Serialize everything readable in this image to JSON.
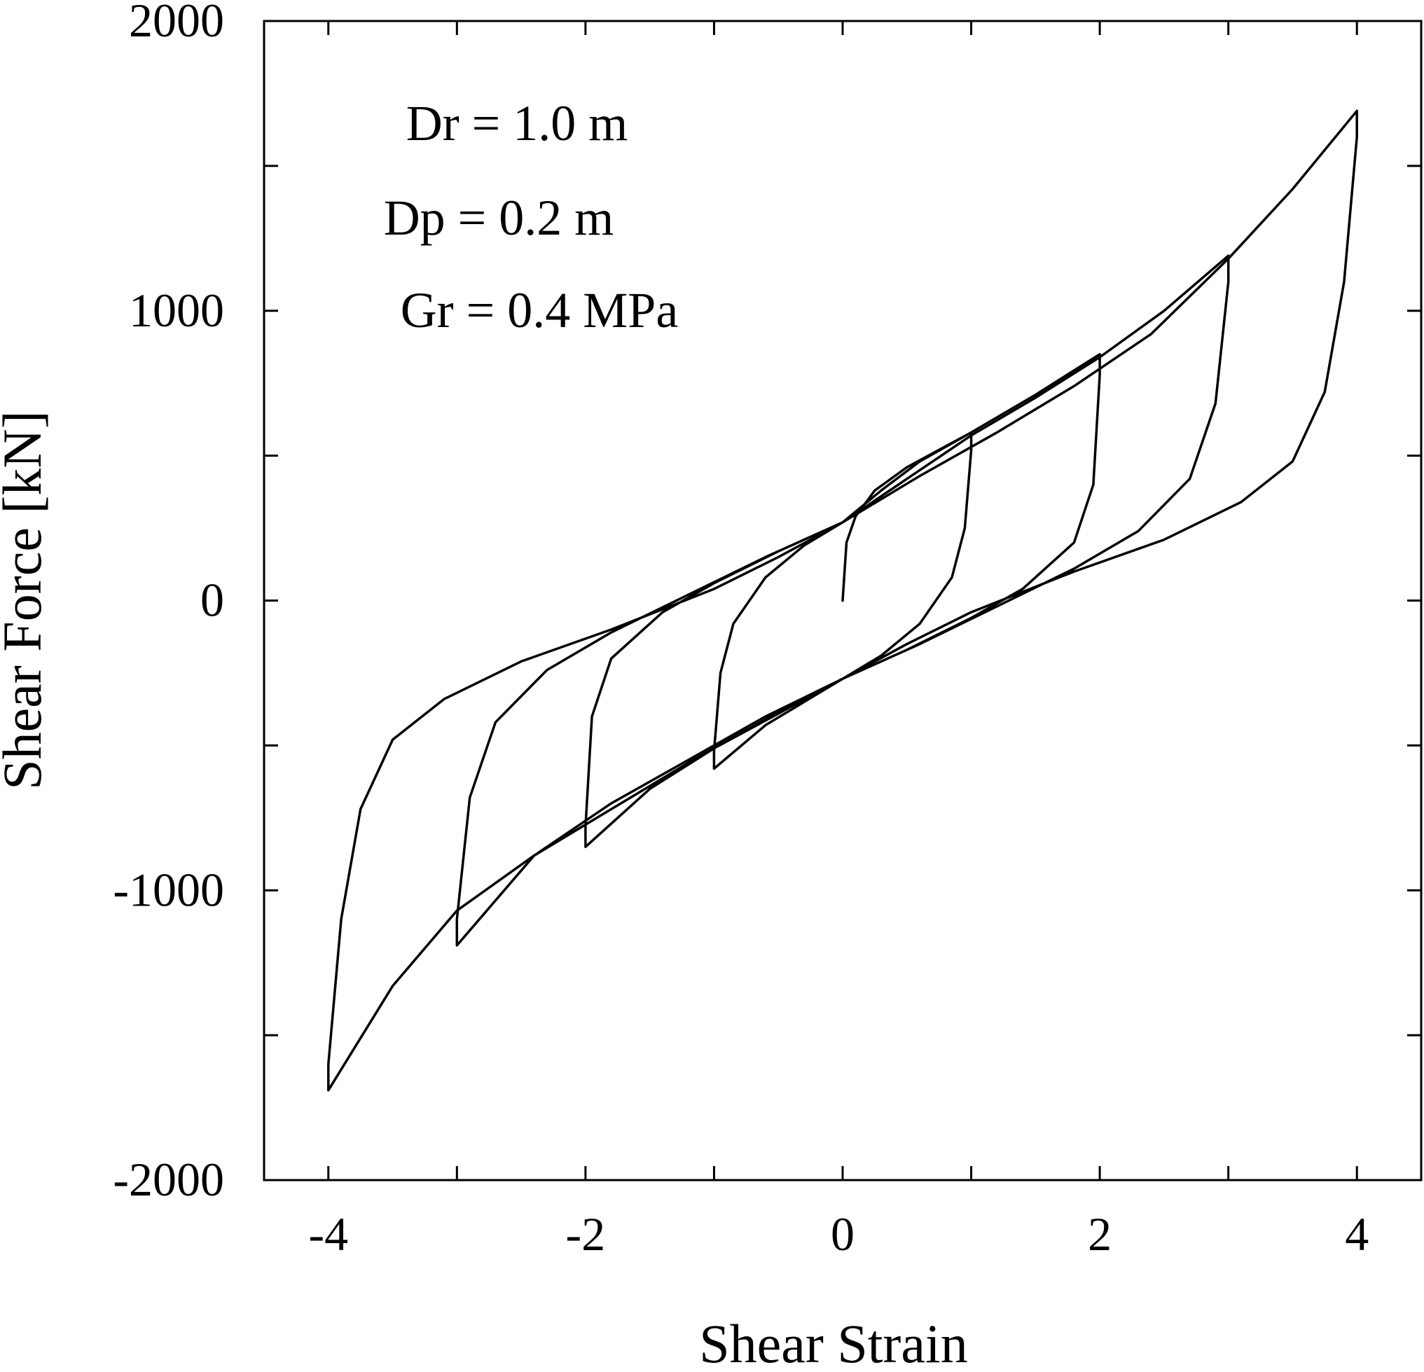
{
  "chart_data": {
    "type": "line",
    "xlabel": "Shear Strain",
    "ylabel": "Shear Force [kN]",
    "xlim": [
      -4.5,
      4.5
    ],
    "ylim": [
      -2000,
      2000
    ],
    "x_ticks": [
      -4,
      -2,
      0,
      2,
      4
    ],
    "x_tick_labels": [
      "-4",
      "-2",
      "0",
      "2",
      "4"
    ],
    "x_minor_ticks": [
      -3,
      -1,
      1,
      3
    ],
    "y_ticks": [
      -2000,
      -1000,
      0,
      1000,
      2000
    ],
    "y_tick_labels": [
      "-2000",
      "-1000",
      "0",
      "1000",
      "2000"
    ],
    "y_minor_ticks": [
      -1500,
      -500,
      500,
      1500
    ],
    "grid": false,
    "annotations": [
      "Dr = 1.0 m",
      "Dp = 0.2 m",
      "Gr = 0.4 MPa"
    ],
    "series": [
      {
        "points": [
          [
            0,
            0
          ],
          [
            0.03,
            200
          ],
          [
            0.1,
            290
          ],
          [
            0.25,
            380
          ],
          [
            0.5,
            460
          ],
          [
            0.75,
            520
          ],
          [
            1.0,
            580
          ],
          [
            1.0,
            520
          ],
          [
            0.95,
            250
          ],
          [
            0.85,
            80
          ],
          [
            0.6,
            -80
          ],
          [
            0.3,
            -190
          ],
          [
            0.0,
            -270
          ],
          [
            -0.3,
            -350
          ],
          [
            -0.6,
            -430
          ],
          [
            -1.0,
            -580
          ],
          [
            -1.0,
            -520
          ],
          [
            -0.95,
            -250
          ],
          [
            -0.85,
            -80
          ],
          [
            -0.6,
            80
          ],
          [
            -0.3,
            190
          ],
          [
            0.0,
            270
          ],
          [
            0.3,
            380
          ],
          [
            0.6,
            480
          ],
          [
            1.0,
            580
          ],
          [
            1.5,
            710
          ],
          [
            2.0,
            850
          ],
          [
            2.0,
            780
          ],
          [
            1.95,
            400
          ],
          [
            1.8,
            200
          ],
          [
            1.4,
            40
          ],
          [
            1.0,
            -60
          ],
          [
            0.5,
            -170
          ],
          [
            0.0,
            -270
          ],
          [
            -0.5,
            -390
          ],
          [
            -1.0,
            -510
          ],
          [
            -1.5,
            -650
          ],
          [
            -2.0,
            -850
          ],
          [
            -2.0,
            -780
          ],
          [
            -1.95,
            -400
          ],
          [
            -1.8,
            -200
          ],
          [
            -1.4,
            -40
          ],
          [
            -1.0,
            60
          ],
          [
            -0.5,
            170
          ],
          [
            0.0,
            270
          ],
          [
            0.5,
            420
          ],
          [
            1.0,
            570
          ],
          [
            1.5,
            700
          ],
          [
            2.0,
            840
          ],
          [
            2.5,
            1000
          ],
          [
            3.0,
            1190
          ],
          [
            3.0,
            1100
          ],
          [
            2.9,
            680
          ],
          [
            2.7,
            420
          ],
          [
            2.3,
            240
          ],
          [
            1.8,
            110
          ],
          [
            1.2,
            -20
          ],
          [
            0.6,
            -150
          ],
          [
            0.0,
            -270
          ],
          [
            -0.6,
            -400
          ],
          [
            -1.2,
            -550
          ],
          [
            -1.8,
            -700
          ],
          [
            -2.4,
            -880
          ],
          [
            -3.0,
            -1190
          ],
          [
            -3.0,
            -1100
          ],
          [
            -2.9,
            -680
          ],
          [
            -2.7,
            -420
          ],
          [
            -2.3,
            -240
          ],
          [
            -1.8,
            -110
          ],
          [
            -1.2,
            20
          ],
          [
            -0.6,
            150
          ],
          [
            0.0,
            270
          ],
          [
            0.6,
            430
          ],
          [
            1.2,
            580
          ],
          [
            1.8,
            740
          ],
          [
            2.4,
            920
          ],
          [
            3.0,
            1180
          ],
          [
            3.5,
            1420
          ],
          [
            4.0,
            1690
          ],
          [
            4.0,
            1600
          ],
          [
            3.9,
            1100
          ],
          [
            3.75,
            720
          ],
          [
            3.5,
            480
          ],
          [
            3.1,
            340
          ],
          [
            2.5,
            210
          ],
          [
            1.8,
            100
          ],
          [
            1.0,
            -40
          ],
          [
            0.5,
            -150
          ],
          [
            0.0,
            -270
          ],
          [
            -0.6,
            -410
          ],
          [
            -1.2,
            -560
          ],
          [
            -1.8,
            -720
          ],
          [
            -2.4,
            -880
          ],
          [
            -3.0,
            -1070
          ],
          [
            -3.5,
            -1330
          ],
          [
            -4.0,
            -1690
          ],
          [
            -4.0,
            -1600
          ],
          [
            -3.9,
            -1100
          ],
          [
            -3.75,
            -720
          ],
          [
            -3.5,
            -480
          ],
          [
            -3.1,
            -340
          ],
          [
            -2.5,
            -210
          ],
          [
            -1.8,
            -100
          ],
          [
            -1.0,
            40
          ],
          [
            -0.5,
            150
          ],
          [
            0.0,
            270
          ]
        ]
      }
    ]
  }
}
